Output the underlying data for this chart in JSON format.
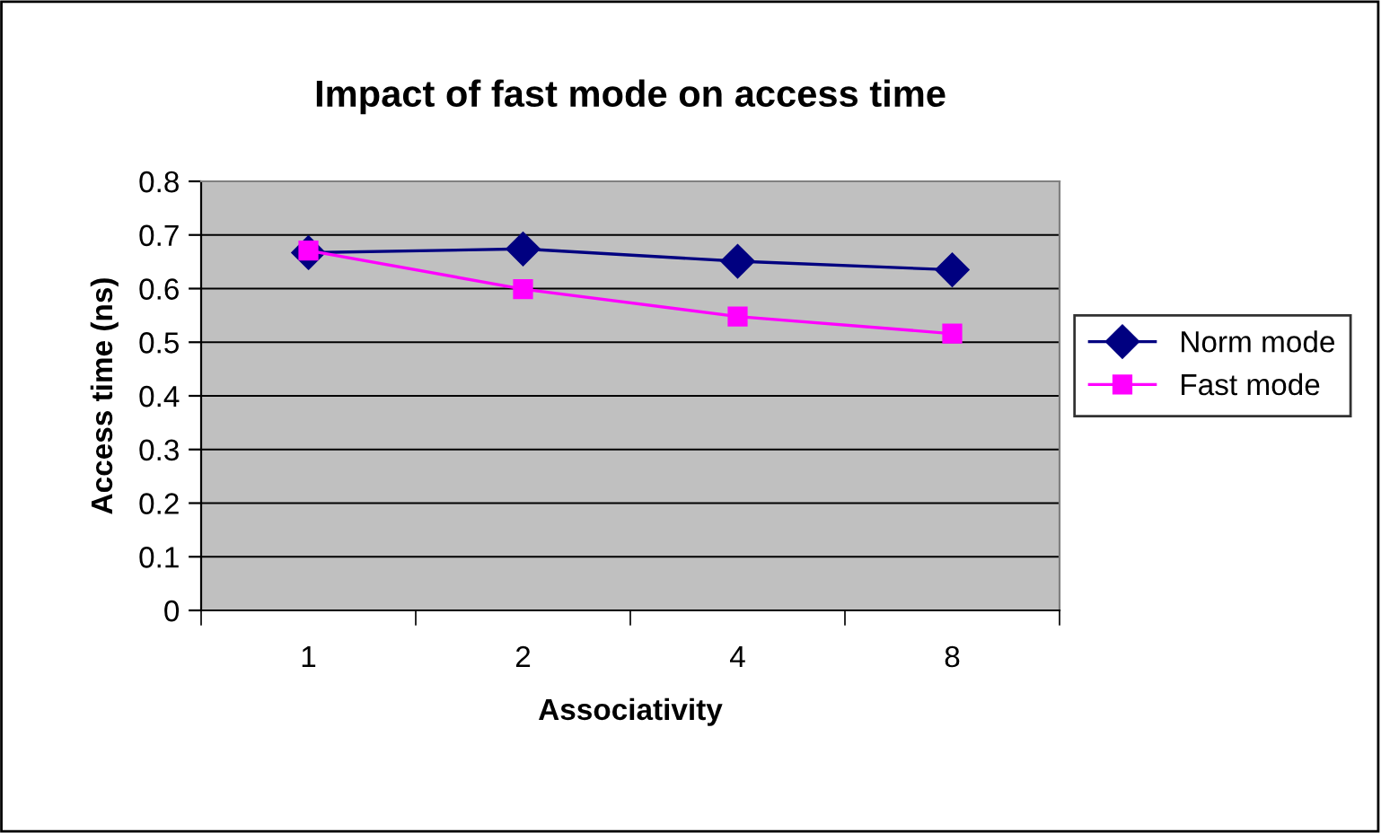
{
  "chart_data": {
    "type": "line",
    "title": "Impact of fast mode on access time",
    "xlabel": "Associativity",
    "ylabel": "Access time (ns)",
    "categories": [
      "1",
      "2",
      "4",
      "8"
    ],
    "series": [
      {
        "name": "Norm mode",
        "color": "#000080",
        "marker": "diamond",
        "values": [
          0.667,
          0.674,
          0.651,
          0.635
        ]
      },
      {
        "name": "Fast mode",
        "color": "#ff00ff",
        "marker": "square",
        "values": [
          0.671,
          0.599,
          0.548,
          0.516
        ]
      }
    ],
    "ylim": [
      0,
      0.8
    ],
    "yticks": [
      0,
      0.1,
      0.2,
      0.3,
      0.4,
      0.5,
      0.6,
      0.7,
      0.8
    ],
    "grid": "y",
    "legend": "right"
  }
}
